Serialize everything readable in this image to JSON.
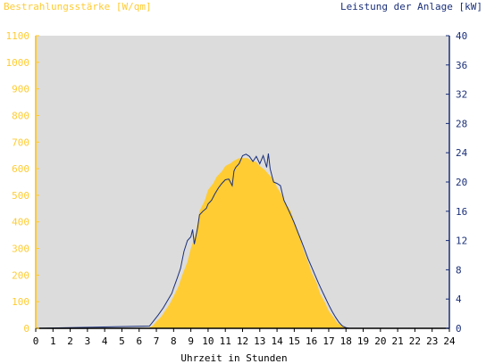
{
  "chart_data": {
    "type": "area",
    "left_axis_title": "Bestrahlungsstärke [W/qm]",
    "right_axis_title": "Leistung der Anlage [kW]",
    "xlabel": "Uhrzeit in Stunden",
    "xlim": [
      0,
      24
    ],
    "ylim_left": [
      0,
      1100
    ],
    "ylim_right": [
      0,
      40
    ],
    "x_ticks": [
      0,
      1,
      2,
      3,
      4,
      5,
      6,
      7,
      8,
      9,
      10,
      11,
      12,
      13,
      14,
      15,
      16,
      17,
      18,
      19,
      20,
      21,
      22,
      23,
      24
    ],
    "y_left_ticks": [
      0,
      100,
      200,
      300,
      400,
      500,
      600,
      700,
      800,
      900,
      1000,
      1100
    ],
    "y_right_ticks": [
      0,
      4,
      8,
      12,
      16,
      20,
      24,
      28,
      32,
      36,
      40
    ],
    "grid": false,
    "colors": {
      "plot_background": "#dcdcdc",
      "irradiance_fill": "#ffcc33",
      "power_line": "#1a2f7a",
      "left_axis": "#ffcc33",
      "right_axis": "#1a2f7a"
    },
    "series": [
      {
        "name": "Bestrahlungsstärke [W/qm]",
        "axis": "left",
        "style": "area",
        "x": [
          0,
          6.5,
          6.8,
          7.0,
          7.3,
          7.5,
          7.8,
          8.0,
          8.3,
          8.5,
          8.8,
          9.0,
          9.3,
          9.5,
          9.8,
          10.0,
          10.3,
          10.5,
          10.8,
          11.0,
          11.3,
          11.5,
          11.8,
          12.0,
          12.3,
          12.5,
          12.8,
          13.0,
          13.3,
          13.5,
          13.8,
          14.0,
          14.3,
          14.5,
          14.8,
          15.0,
          15.3,
          15.5,
          15.8,
          16.0,
          16.3,
          16.5,
          16.8,
          17.0,
          17.3,
          17.5,
          17.8,
          18.0,
          18.3,
          24
        ],
        "y": [
          0,
          0,
          10,
          25,
          45,
          65,
          95,
          120,
          160,
          200,
          250,
          300,
          360,
          440,
          480,
          520,
          545,
          570,
          590,
          610,
          620,
          630,
          640,
          640,
          640,
          630,
          625,
          610,
          595,
          580,
          560,
          530,
          500,
          470,
          440,
          400,
          350,
          300,
          250,
          210,
          170,
          130,
          95,
          65,
          40,
          20,
          8,
          2,
          0,
          0
        ]
      },
      {
        "name": "Leistung der Anlage [kW]",
        "axis": "right",
        "style": "line",
        "x": [
          0,
          6.6,
          6.9,
          7.1,
          7.4,
          7.6,
          7.9,
          8.0,
          8.2,
          8.4,
          8.6,
          8.8,
          9.0,
          9.1,
          9.2,
          9.4,
          9.5,
          9.7,
          9.9,
          10.0,
          10.2,
          10.4,
          10.6,
          10.8,
          11.0,
          11.2,
          11.4,
          11.5,
          11.6,
          11.8,
          12.0,
          12.2,
          12.4,
          12.6,
          12.8,
          13.0,
          13.2,
          13.4,
          13.5,
          13.6,
          13.8,
          14.0,
          14.2,
          14.4,
          14.6,
          14.8,
          15.0,
          15.2,
          15.4,
          15.6,
          15.8,
          16.0,
          16.2,
          16.4,
          16.6,
          16.8,
          17.0,
          17.2,
          17.4,
          17.6,
          17.8,
          18.0,
          18.2,
          24
        ],
        "y": [
          0,
          0.3,
          1.2,
          1.8,
          2.8,
          3.6,
          4.8,
          5.5,
          6.8,
          8.2,
          10.5,
          12.0,
          12.5,
          13.5,
          11.5,
          13.8,
          15.5,
          16.0,
          16.4,
          17.0,
          17.5,
          18.4,
          19.2,
          19.8,
          20.3,
          20.4,
          19.5,
          21.5,
          22.0,
          22.5,
          23.6,
          23.8,
          23.5,
          22.8,
          23.5,
          22.5,
          23.6,
          22.0,
          23.9,
          21.8,
          20.0,
          19.8,
          19.5,
          17.5,
          16.5,
          15.5,
          14.4,
          13.2,
          12.0,
          10.8,
          9.5,
          8.4,
          7.3,
          6.2,
          5.2,
          4.2,
          3.2,
          2.3,
          1.5,
          0.8,
          0.3,
          0.1,
          0,
          0
        ]
      }
    ]
  }
}
